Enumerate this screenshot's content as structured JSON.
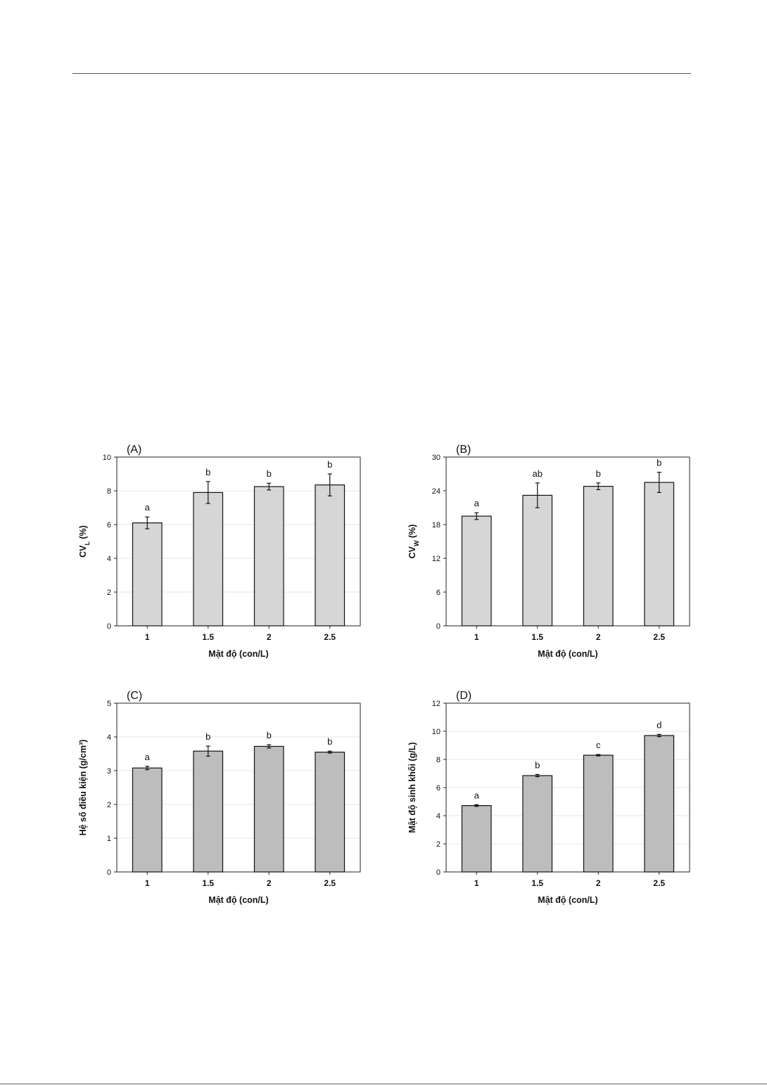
{
  "chart_data": [
    {
      "type": "bar",
      "title": "(A)",
      "categories": [
        "1",
        "1.5",
        "2",
        "2.5"
      ],
      "values": [
        6.1,
        7.9,
        8.25,
        8.35
      ],
      "errors": [
        0.35,
        0.65,
        0.2,
        0.65
      ],
      "letters": [
        "a",
        "b",
        "b",
        "b"
      ],
      "ylabel": "CV_L (%)",
      "ylabel_main": "CV",
      "ylabel_sub": "L",
      "ylabel_rest": " (%)",
      "xlabel": "Mật độ (con/L)",
      "ylim": [
        0,
        10
      ],
      "yticks": [
        "0",
        "2",
        "4",
        "6",
        "8",
        "10"
      ],
      "grid": true,
      "bar_color": "#d6d6d6"
    },
    {
      "type": "bar",
      "title": "(B)",
      "categories": [
        "1",
        "1.5",
        "2",
        "2.5"
      ],
      "values": [
        19.5,
        23.2,
        24.8,
        25.5
      ],
      "errors": [
        0.6,
        2.2,
        0.6,
        1.8
      ],
      "letters": [
        "a",
        "ab",
        "b",
        "b"
      ],
      "ylabel": "CV_W (%)",
      "ylabel_main": "CV",
      "ylabel_sub": "W",
      "ylabel_rest": " (%)",
      "xlabel": "Mật độ (con/L)",
      "ylim": [
        0,
        30
      ],
      "yticks": [
        "0",
        "6",
        "12",
        "18",
        "24",
        "30"
      ],
      "grid": false,
      "bar_color": "#d6d6d6"
    },
    {
      "type": "bar",
      "title": "(C)",
      "categories": [
        "1",
        "1.5",
        "2",
        "2.5"
      ],
      "values": [
        3.08,
        3.58,
        3.72,
        3.55
      ],
      "errors": [
        0.05,
        0.15,
        0.05,
        0.03
      ],
      "letters": [
        "a",
        "b",
        "b",
        "b"
      ],
      "ylabel": "Hệ số điều kiện (g/cm³)",
      "ylabel_main": "Hệ số điều kiện (g/cm³)",
      "ylabel_sub": "",
      "ylabel_rest": "",
      "xlabel": "Mật độ (con/L)",
      "ylim": [
        0,
        5
      ],
      "yticks": [
        "0",
        "1",
        "2",
        "3",
        "4",
        "5"
      ],
      "grid": true,
      "bar_color": "#bdbdbd"
    },
    {
      "type": "bar",
      "title": "(D)",
      "categories": [
        "1",
        "1.5",
        "2",
        "2.5"
      ],
      "values": [
        4.72,
        6.85,
        8.3,
        9.7
      ],
      "errors": [
        0.06,
        0.08,
        0.05,
        0.08
      ],
      "letters": [
        "a",
        "b",
        "c",
        "d"
      ],
      "ylabel": "Mật độ sinh khối (g/L)",
      "ylabel_main": "Mật độ sinh khối (g/L)",
      "ylabel_sub": "",
      "ylabel_rest": "",
      "xlabel": "Mật độ (con/L)",
      "ylim": [
        0,
        12
      ],
      "yticks": [
        "0",
        "2",
        "4",
        "6",
        "8",
        "10",
        "12"
      ],
      "grid": true,
      "bar_color": "#bdbdbd"
    }
  ]
}
